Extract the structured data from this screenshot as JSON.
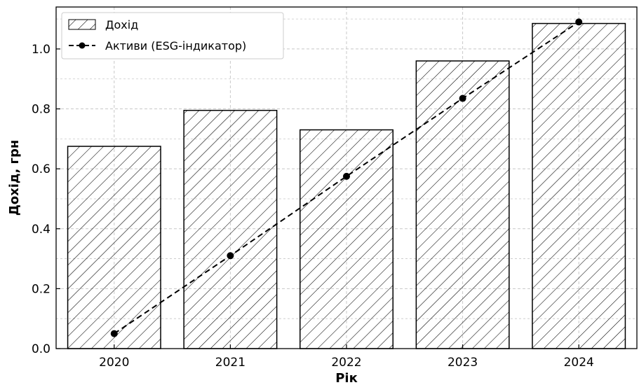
{
  "chart_data": {
    "type": "bar",
    "title": "",
    "xlabel": "Рік",
    "ylabel": "Дохід, грн",
    "categories": [
      "2020",
      "2021",
      "2022",
      "2023",
      "2024"
    ],
    "ylim": [
      0,
      1.14
    ],
    "yticks": [
      0.0,
      0.2,
      0.4,
      0.6,
      0.8,
      1.0
    ],
    "ytick_labels": [
      "0.0",
      "0.2",
      "0.4",
      "0.6",
      "0.8",
      "1.0"
    ],
    "grid": true,
    "legend_position": "top-left",
    "series": [
      {
        "name": "Дохід",
        "kind": "bar",
        "hatch": "diagonal",
        "values": [
          0.675,
          0.795,
          0.73,
          0.96,
          1.085
        ]
      },
      {
        "name": "Активи (ESG-індикатор)",
        "kind": "line",
        "style": "dashed",
        "marker": "circle",
        "values": [
          0.05,
          0.31,
          0.575,
          0.835,
          1.09
        ]
      }
    ],
    "colors": {
      "bar_edge": "#000000",
      "bar_fill": "#ffffff",
      "line": "#000000",
      "grid": "#c8c8c8"
    }
  }
}
